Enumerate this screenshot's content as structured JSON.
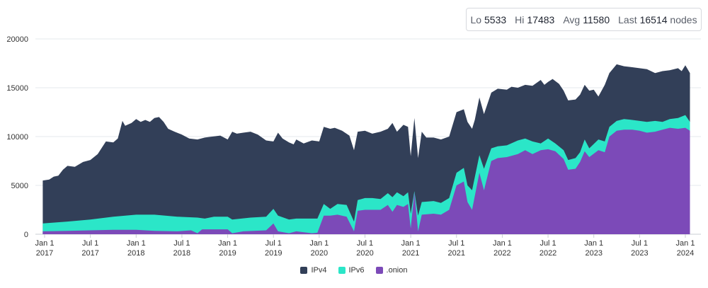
{
  "stats": {
    "lo_label": "Lo",
    "lo_value": "5533",
    "hi_label": "Hi",
    "hi_value": "17483",
    "avg_label": "Avg",
    "avg_value": "11580",
    "last_label": "Last",
    "last_value": "16514",
    "unit": "nodes"
  },
  "chart_data": {
    "type": "area",
    "stacked": true,
    "title": "",
    "xlabel": "",
    "ylabel": "",
    "ylim": [
      0,
      20000
    ],
    "yticks": [
      "0",
      "5000",
      "10000",
      "15000",
      "20000"
    ],
    "xticks": [
      {
        "month": "Jan 1",
        "year": "2017",
        "t": 2017.0
      },
      {
        "month": "Jul 1",
        "year": "2017",
        "t": 2017.5
      },
      {
        "month": "Jan 1",
        "year": "2018",
        "t": 2018.0
      },
      {
        "month": "Jul 1",
        "year": "2018",
        "t": 2018.5
      },
      {
        "month": "Jan 1",
        "year": "2019",
        "t": 2019.0
      },
      {
        "month": "Jul 1",
        "year": "2019",
        "t": 2019.5
      },
      {
        "month": "Jan 1",
        "year": "2020",
        "t": 2020.0
      },
      {
        "month": "Jul 1",
        "year": "2020",
        "t": 2020.5
      },
      {
        "month": "Jan 1",
        "year": "2021",
        "t": 2021.0
      },
      {
        "month": "Jul 1",
        "year": "2021",
        "t": 2021.5
      },
      {
        "month": "Jan 1",
        "year": "2022",
        "t": 2022.0
      },
      {
        "month": "Jul 1",
        "year": "2022",
        "t": 2022.5
      },
      {
        "month": "Jan 1",
        "year": "2023",
        "t": 2023.0
      },
      {
        "month": "Jul 1",
        "year": "2023",
        "t": 2023.5
      },
      {
        "month": "Jan 1",
        "year": "2024",
        "t": 2024.0
      }
    ],
    "xlim": [
      2017.0,
      2024.0
    ],
    "grid": true,
    "legend_position": "bottom-center",
    "series": [
      {
        "name": "IPv4",
        "color": "#323f58",
        "points": [
          [
            2016.98,
            5500
          ],
          [
            2017.05,
            5600
          ],
          [
            2017.1,
            5900
          ],
          [
            2017.15,
            6000
          ],
          [
            2017.2,
            6600
          ],
          [
            2017.25,
            7000
          ],
          [
            2017.33,
            6900
          ],
          [
            2017.42,
            7400
          ],
          [
            2017.5,
            7600
          ],
          [
            2017.58,
            8200
          ],
          [
            2017.67,
            9500
          ],
          [
            2017.75,
            9400
          ],
          [
            2017.8,
            9800
          ],
          [
            2017.85,
            11600
          ],
          [
            2017.88,
            11100
          ],
          [
            2017.95,
            11400
          ],
          [
            2018.0,
            11800
          ],
          [
            2018.05,
            11500
          ],
          [
            2018.1,
            11700
          ],
          [
            2018.15,
            11500
          ],
          [
            2018.2,
            11900
          ],
          [
            2018.25,
            12000
          ],
          [
            2018.3,
            11500
          ],
          [
            2018.35,
            10800
          ],
          [
            2018.42,
            10500
          ],
          [
            2018.5,
            10200
          ],
          [
            2018.58,
            9800
          ],
          [
            2018.67,
            9700
          ],
          [
            2018.75,
            9900
          ],
          [
            2018.83,
            10000
          ],
          [
            2018.92,
            10100
          ],
          [
            2019.0,
            9700
          ],
          [
            2019.05,
            10500
          ],
          [
            2019.1,
            10300
          ],
          [
            2019.17,
            10400
          ],
          [
            2019.25,
            10500
          ],
          [
            2019.33,
            10200
          ],
          [
            2019.42,
            9600
          ],
          [
            2019.5,
            9500
          ],
          [
            2019.55,
            10400
          ],
          [
            2019.6,
            9800
          ],
          [
            2019.67,
            9400
          ],
          [
            2019.72,
            9200
          ],
          [
            2019.75,
            9700
          ],
          [
            2019.83,
            9300
          ],
          [
            2019.92,
            9600
          ],
          [
            2020.0,
            9500
          ],
          [
            2020.05,
            11000
          ],
          [
            2020.12,
            10800
          ],
          [
            2020.17,
            10900
          ],
          [
            2020.25,
            10600
          ],
          [
            2020.33,
            10100
          ],
          [
            2020.38,
            8600
          ],
          [
            2020.42,
            10500
          ],
          [
            2020.5,
            10600
          ],
          [
            2020.58,
            10300
          ],
          [
            2020.67,
            10500
          ],
          [
            2020.75,
            10800
          ],
          [
            2020.8,
            11400
          ],
          [
            2020.85,
            10500
          ],
          [
            2020.92,
            11200
          ],
          [
            2020.97,
            11000
          ],
          [
            2021.0,
            8000
          ],
          [
            2021.04,
            11900
          ],
          [
            2021.08,
            7800
          ],
          [
            2021.12,
            10500
          ],
          [
            2021.17,
            9900
          ],
          [
            2021.25,
            9900
          ],
          [
            2021.33,
            9700
          ],
          [
            2021.42,
            10000
          ],
          [
            2021.5,
            12500
          ],
          [
            2021.58,
            12800
          ],
          [
            2021.62,
            11500
          ],
          [
            2021.67,
            10800
          ],
          [
            2021.7,
            11700
          ],
          [
            2021.75,
            14000
          ],
          [
            2021.8,
            12300
          ],
          [
            2021.88,
            14500
          ],
          [
            2021.95,
            14900
          ],
          [
            2022.05,
            14800
          ],
          [
            2022.1,
            15100
          ],
          [
            2022.17,
            15000
          ],
          [
            2022.25,
            15300
          ],
          [
            2022.33,
            15200
          ],
          [
            2022.42,
            15800
          ],
          [
            2022.46,
            15300
          ],
          [
            2022.5,
            15600
          ],
          [
            2022.55,
            15900
          ],
          [
            2022.62,
            15400
          ],
          [
            2022.67,
            14700
          ],
          [
            2022.72,
            13700
          ],
          [
            2022.8,
            13800
          ],
          [
            2022.85,
            14300
          ],
          [
            2022.9,
            15300
          ],
          [
            2022.95,
            14700
          ],
          [
            2023.0,
            14800
          ],
          [
            2023.05,
            14100
          ],
          [
            2023.12,
            15300
          ],
          [
            2023.17,
            16500
          ],
          [
            2023.25,
            17400
          ],
          [
            2023.33,
            17200
          ],
          [
            2023.42,
            17100
          ],
          [
            2023.5,
            17000
          ],
          [
            2023.58,
            16900
          ],
          [
            2023.67,
            16500
          ],
          [
            2023.75,
            16700
          ],
          [
            2023.83,
            16800
          ],
          [
            2023.92,
            17000
          ],
          [
            2023.96,
            16700
          ],
          [
            2024.0,
            17300
          ],
          [
            2024.05,
            16500
          ]
        ]
      },
      {
        "name": "IPv6",
        "color": "#2be6c8",
        "points": [
          [
            2016.98,
            1100
          ],
          [
            2017.25,
            1300
          ],
          [
            2017.5,
            1500
          ],
          [
            2017.75,
            1800
          ],
          [
            2018.0,
            2000
          ],
          [
            2018.2,
            2000
          ],
          [
            2018.45,
            1800
          ],
          [
            2018.67,
            1700
          ],
          [
            2018.75,
            1600
          ],
          [
            2018.85,
            1800
          ],
          [
            2019.0,
            1800
          ],
          [
            2019.05,
            1500
          ],
          [
            2019.25,
            1700
          ],
          [
            2019.42,
            1800
          ],
          [
            2019.5,
            2600
          ],
          [
            2019.55,
            1900
          ],
          [
            2019.67,
            1500
          ],
          [
            2019.75,
            1600
          ],
          [
            2019.92,
            1600
          ],
          [
            2019.98,
            1600
          ],
          [
            2020.05,
            3100
          ],
          [
            2020.12,
            2600
          ],
          [
            2020.2,
            3100
          ],
          [
            2020.3,
            3000
          ],
          [
            2020.38,
            1300
          ],
          [
            2020.42,
            3500
          ],
          [
            2020.5,
            3700
          ],
          [
            2020.58,
            3700
          ],
          [
            2020.67,
            3600
          ],
          [
            2020.75,
            4200
          ],
          [
            2020.8,
            3800
          ],
          [
            2020.85,
            4300
          ],
          [
            2020.92,
            3900
          ],
          [
            2020.97,
            4300
          ],
          [
            2021.0,
            2100
          ],
          [
            2021.04,
            4400
          ],
          [
            2021.08,
            1900
          ],
          [
            2021.12,
            3300
          ],
          [
            2021.25,
            3400
          ],
          [
            2021.33,
            3200
          ],
          [
            2021.42,
            3700
          ],
          [
            2021.5,
            6300
          ],
          [
            2021.58,
            6800
          ],
          [
            2021.62,
            5000
          ],
          [
            2021.67,
            4500
          ],
          [
            2021.75,
            8100
          ],
          [
            2021.8,
            6700
          ],
          [
            2021.88,
            8800
          ],
          [
            2021.95,
            9000
          ],
          [
            2022.05,
            9100
          ],
          [
            2022.17,
            9600
          ],
          [
            2022.25,
            9800
          ],
          [
            2022.33,
            9500
          ],
          [
            2022.42,
            9300
          ],
          [
            2022.5,
            9800
          ],
          [
            2022.58,
            9300
          ],
          [
            2022.67,
            8600
          ],
          [
            2022.72,
            7600
          ],
          [
            2022.8,
            7800
          ],
          [
            2022.85,
            8400
          ],
          [
            2022.9,
            9700
          ],
          [
            2022.95,
            8800
          ],
          [
            2023.05,
            9700
          ],
          [
            2023.12,
            9500
          ],
          [
            2023.17,
            11000
          ],
          [
            2023.25,
            11600
          ],
          [
            2023.33,
            11800
          ],
          [
            2023.42,
            11700
          ],
          [
            2023.5,
            11600
          ],
          [
            2023.58,
            11500
          ],
          [
            2023.67,
            11600
          ],
          [
            2023.75,
            11500
          ],
          [
            2023.83,
            11800
          ],
          [
            2023.92,
            11900
          ],
          [
            2024.0,
            12200
          ],
          [
            2024.05,
            11500
          ]
        ]
      },
      {
        "name": ".onion",
        "color": "#7c4ab8",
        "points": [
          [
            2016.98,
            300
          ],
          [
            2017.25,
            350
          ],
          [
            2017.5,
            400
          ],
          [
            2017.75,
            450
          ],
          [
            2018.0,
            450
          ],
          [
            2018.2,
            350
          ],
          [
            2018.45,
            300
          ],
          [
            2018.6,
            400
          ],
          [
            2018.67,
            100
          ],
          [
            2018.72,
            500
          ],
          [
            2019.0,
            500
          ],
          [
            2019.05,
            100
          ],
          [
            2019.17,
            300
          ],
          [
            2019.42,
            400
          ],
          [
            2019.5,
            1100
          ],
          [
            2019.55,
            300
          ],
          [
            2019.67,
            100
          ],
          [
            2019.75,
            300
          ],
          [
            2019.92,
            100
          ],
          [
            2019.98,
            150
          ],
          [
            2020.05,
            1900
          ],
          [
            2020.12,
            1900
          ],
          [
            2020.2,
            2000
          ],
          [
            2020.3,
            1800
          ],
          [
            2020.38,
            300
          ],
          [
            2020.42,
            2400
          ],
          [
            2020.5,
            2500
          ],
          [
            2020.58,
            2500
          ],
          [
            2020.67,
            2500
          ],
          [
            2020.75,
            3000
          ],
          [
            2020.8,
            2300
          ],
          [
            2020.85,
            3000
          ],
          [
            2020.92,
            2800
          ],
          [
            2020.97,
            3100
          ],
          [
            2021.0,
            600
          ],
          [
            2021.04,
            4300
          ],
          [
            2021.08,
            300
          ],
          [
            2021.12,
            2000
          ],
          [
            2021.25,
            2100
          ],
          [
            2021.33,
            2000
          ],
          [
            2021.42,
            2500
          ],
          [
            2021.5,
            5000
          ],
          [
            2021.58,
            5400
          ],
          [
            2021.62,
            3300
          ],
          [
            2021.67,
            2500
          ],
          [
            2021.75,
            6300
          ],
          [
            2021.8,
            4500
          ],
          [
            2021.88,
            7500
          ],
          [
            2021.95,
            7800
          ],
          [
            2022.05,
            7900
          ],
          [
            2022.17,
            8200
          ],
          [
            2022.25,
            8600
          ],
          [
            2022.33,
            8200
          ],
          [
            2022.42,
            8600
          ],
          [
            2022.5,
            8700
          ],
          [
            2022.58,
            8500
          ],
          [
            2022.67,
            7700
          ],
          [
            2022.72,
            6600
          ],
          [
            2022.8,
            6700
          ],
          [
            2022.85,
            7400
          ],
          [
            2022.9,
            8500
          ],
          [
            2022.95,
            7900
          ],
          [
            2023.05,
            8600
          ],
          [
            2023.12,
            8400
          ],
          [
            2023.17,
            10000
          ],
          [
            2023.25,
            10600
          ],
          [
            2023.33,
            10700
          ],
          [
            2023.42,
            10700
          ],
          [
            2023.5,
            10600
          ],
          [
            2023.58,
            10400
          ],
          [
            2023.67,
            10500
          ],
          [
            2023.75,
            10700
          ],
          [
            2023.83,
            10900
          ],
          [
            2023.92,
            10800
          ],
          [
            2024.0,
            10900
          ],
          [
            2024.05,
            10600
          ]
        ]
      }
    ]
  }
}
